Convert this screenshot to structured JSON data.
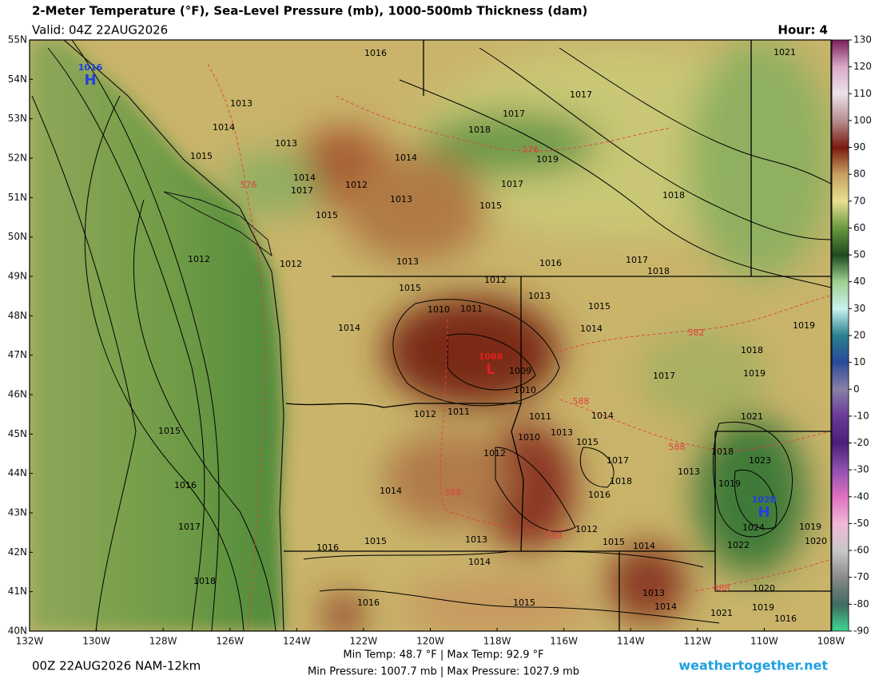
{
  "header": {
    "title": "2-Meter Temperature (°F), Sea-Level Pressure (mb), 1000-500mb Thickness (dam)",
    "valid": "Valid: 04Z 22AUG2026",
    "hour": "Hour: 4"
  },
  "map": {
    "lat_labels": [
      "55N",
      "54N",
      "53N",
      "52N",
      "51N",
      "50N",
      "49N",
      "48N",
      "47N",
      "46N",
      "45N",
      "44N",
      "43N",
      "42N",
      "41N",
      "40N"
    ],
    "lon_labels": [
      "132W",
      "130W",
      "128W",
      "126W",
      "124W",
      "122W",
      "120W",
      "118W",
      "116W",
      "114W",
      "112W",
      "110W",
      "108W"
    ],
    "isobar_labels": [
      1016,
      1021,
      1013,
      1017,
      1014,
      1018,
      1017,
      1013,
      1015,
      1014,
      1019,
      1014,
      1012,
      1017,
      1017,
      1018,
      1013,
      1015,
      1015,
      1013,
      1016,
      1017,
      1018,
      1012,
      1012,
      1015,
      1012,
      1013,
      1010,
      1011,
      1015,
      1014,
      1019,
      1014,
      1018,
      1009,
      1019,
      1017,
      1010,
      1012,
      1011,
      1011,
      1014,
      1021,
      1015,
      1013,
      1010,
      1015,
      1018,
      1023,
      1017,
      1012,
      1013,
      1019,
      1016,
      1014,
      1018,
      1016,
      1012,
      1024,
      1019,
      1017,
      1020,
      1016,
      1015,
      1013,
      1015,
      1014,
      1022,
      1014,
      1013,
      1020,
      1018,
      1014,
      1019,
      1015,
      1016,
      1021,
      1016
    ],
    "thickness_labels": [
      576,
      576,
      582,
      588,
      588,
      588,
      588,
      588
    ],
    "centers": [
      {
        "letter": "H",
        "pressure": 1016
      },
      {
        "letter": "L",
        "pressure": 1008
      },
      {
        "letter": "H",
        "pressure": 1028
      }
    ]
  },
  "colorbar": {
    "range": [
      -90,
      130
    ],
    "ticks": [
      130,
      120,
      110,
      100,
      90,
      80,
      70,
      60,
      50,
      40,
      30,
      20,
      10,
      0,
      -10,
      -20,
      -30,
      -40,
      -50,
      -60,
      -70,
      -80,
      -90
    ]
  },
  "footer": {
    "init": "00Z 22AUG2026 NAM-12km",
    "temp": "Min Temp:  48.7 °F | Max Temp:  92.9 °F",
    "pressure": "Min Pressure: 1007.7 mb | Max Pressure: 1027.9 mb",
    "site": "weathertogether.net"
  }
}
